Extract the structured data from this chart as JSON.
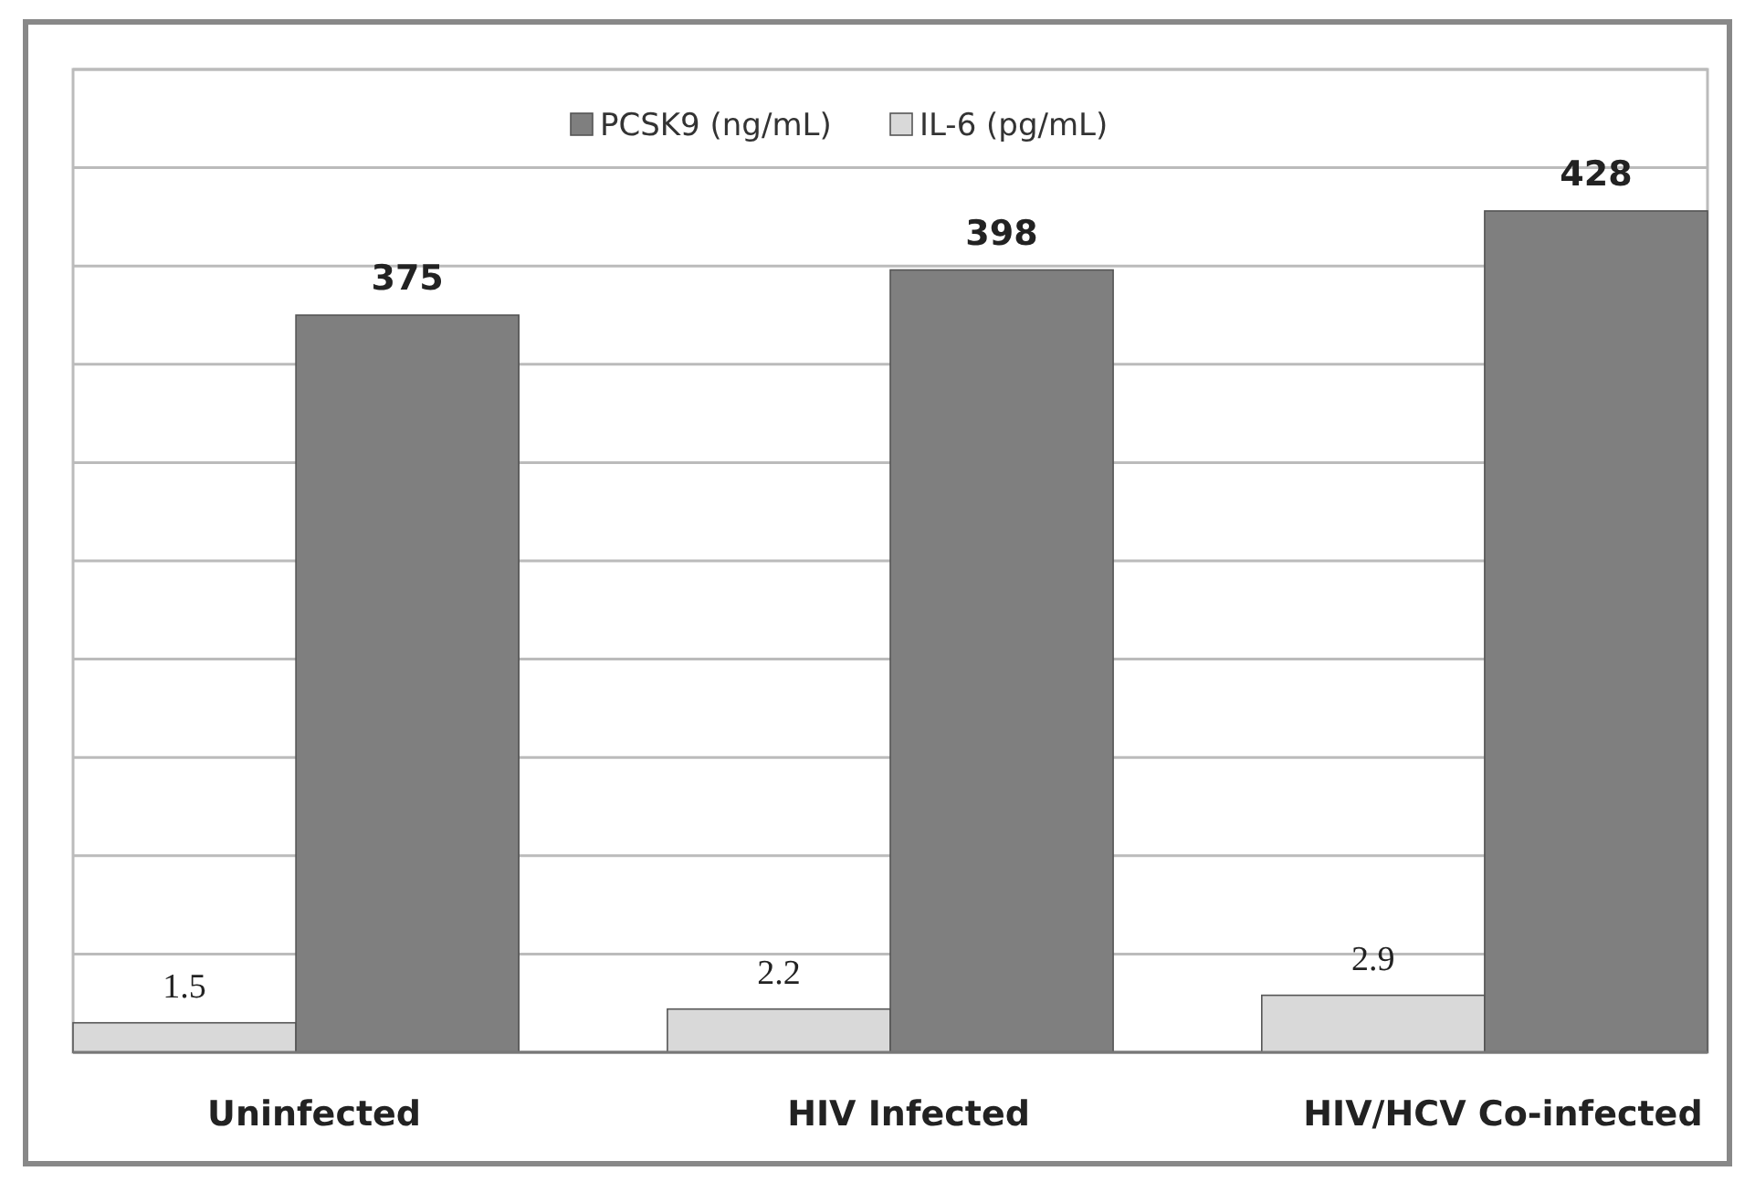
{
  "chart_data": {
    "type": "bar",
    "categories": [
      "Uninfected",
      "HIV Infected",
      "HIV/HCV Co-infected"
    ],
    "series": [
      {
        "name": "IL-6 (pg/mL)",
        "color": "#d9d9d9",
        "values": [
          1.5,
          2.2,
          2.9
        ],
        "axis": "y2"
      },
      {
        "name": "PCSK9 (ng/mL)",
        "color": "#7f7f7f",
        "values": [
          375,
          398,
          428
        ]
      }
    ],
    "ylim": [
      0,
      500
    ],
    "yticks": [
      {
        "value": 0,
        "label": null
      },
      {
        "value": 50,
        "label": null
      },
      {
        "value": 100,
        "label": null
      },
      {
        "value": 150,
        "label": null
      },
      {
        "value": 200,
        "label": null
      },
      {
        "value": 250,
        "label": null
      },
      {
        "value": 300,
        "label": null
      },
      {
        "value": 350,
        "label": null
      },
      {
        "value": 400,
        "label": null
      },
      {
        "value": 450,
        "label": null
      },
      {
        "value": 500,
        "label": null
      }
    ],
    "y2lim": [
      0,
      50
    ],
    "tick_labels": "x",
    "grid": "y",
    "legend": "top",
    "data_labels": true
  }
}
